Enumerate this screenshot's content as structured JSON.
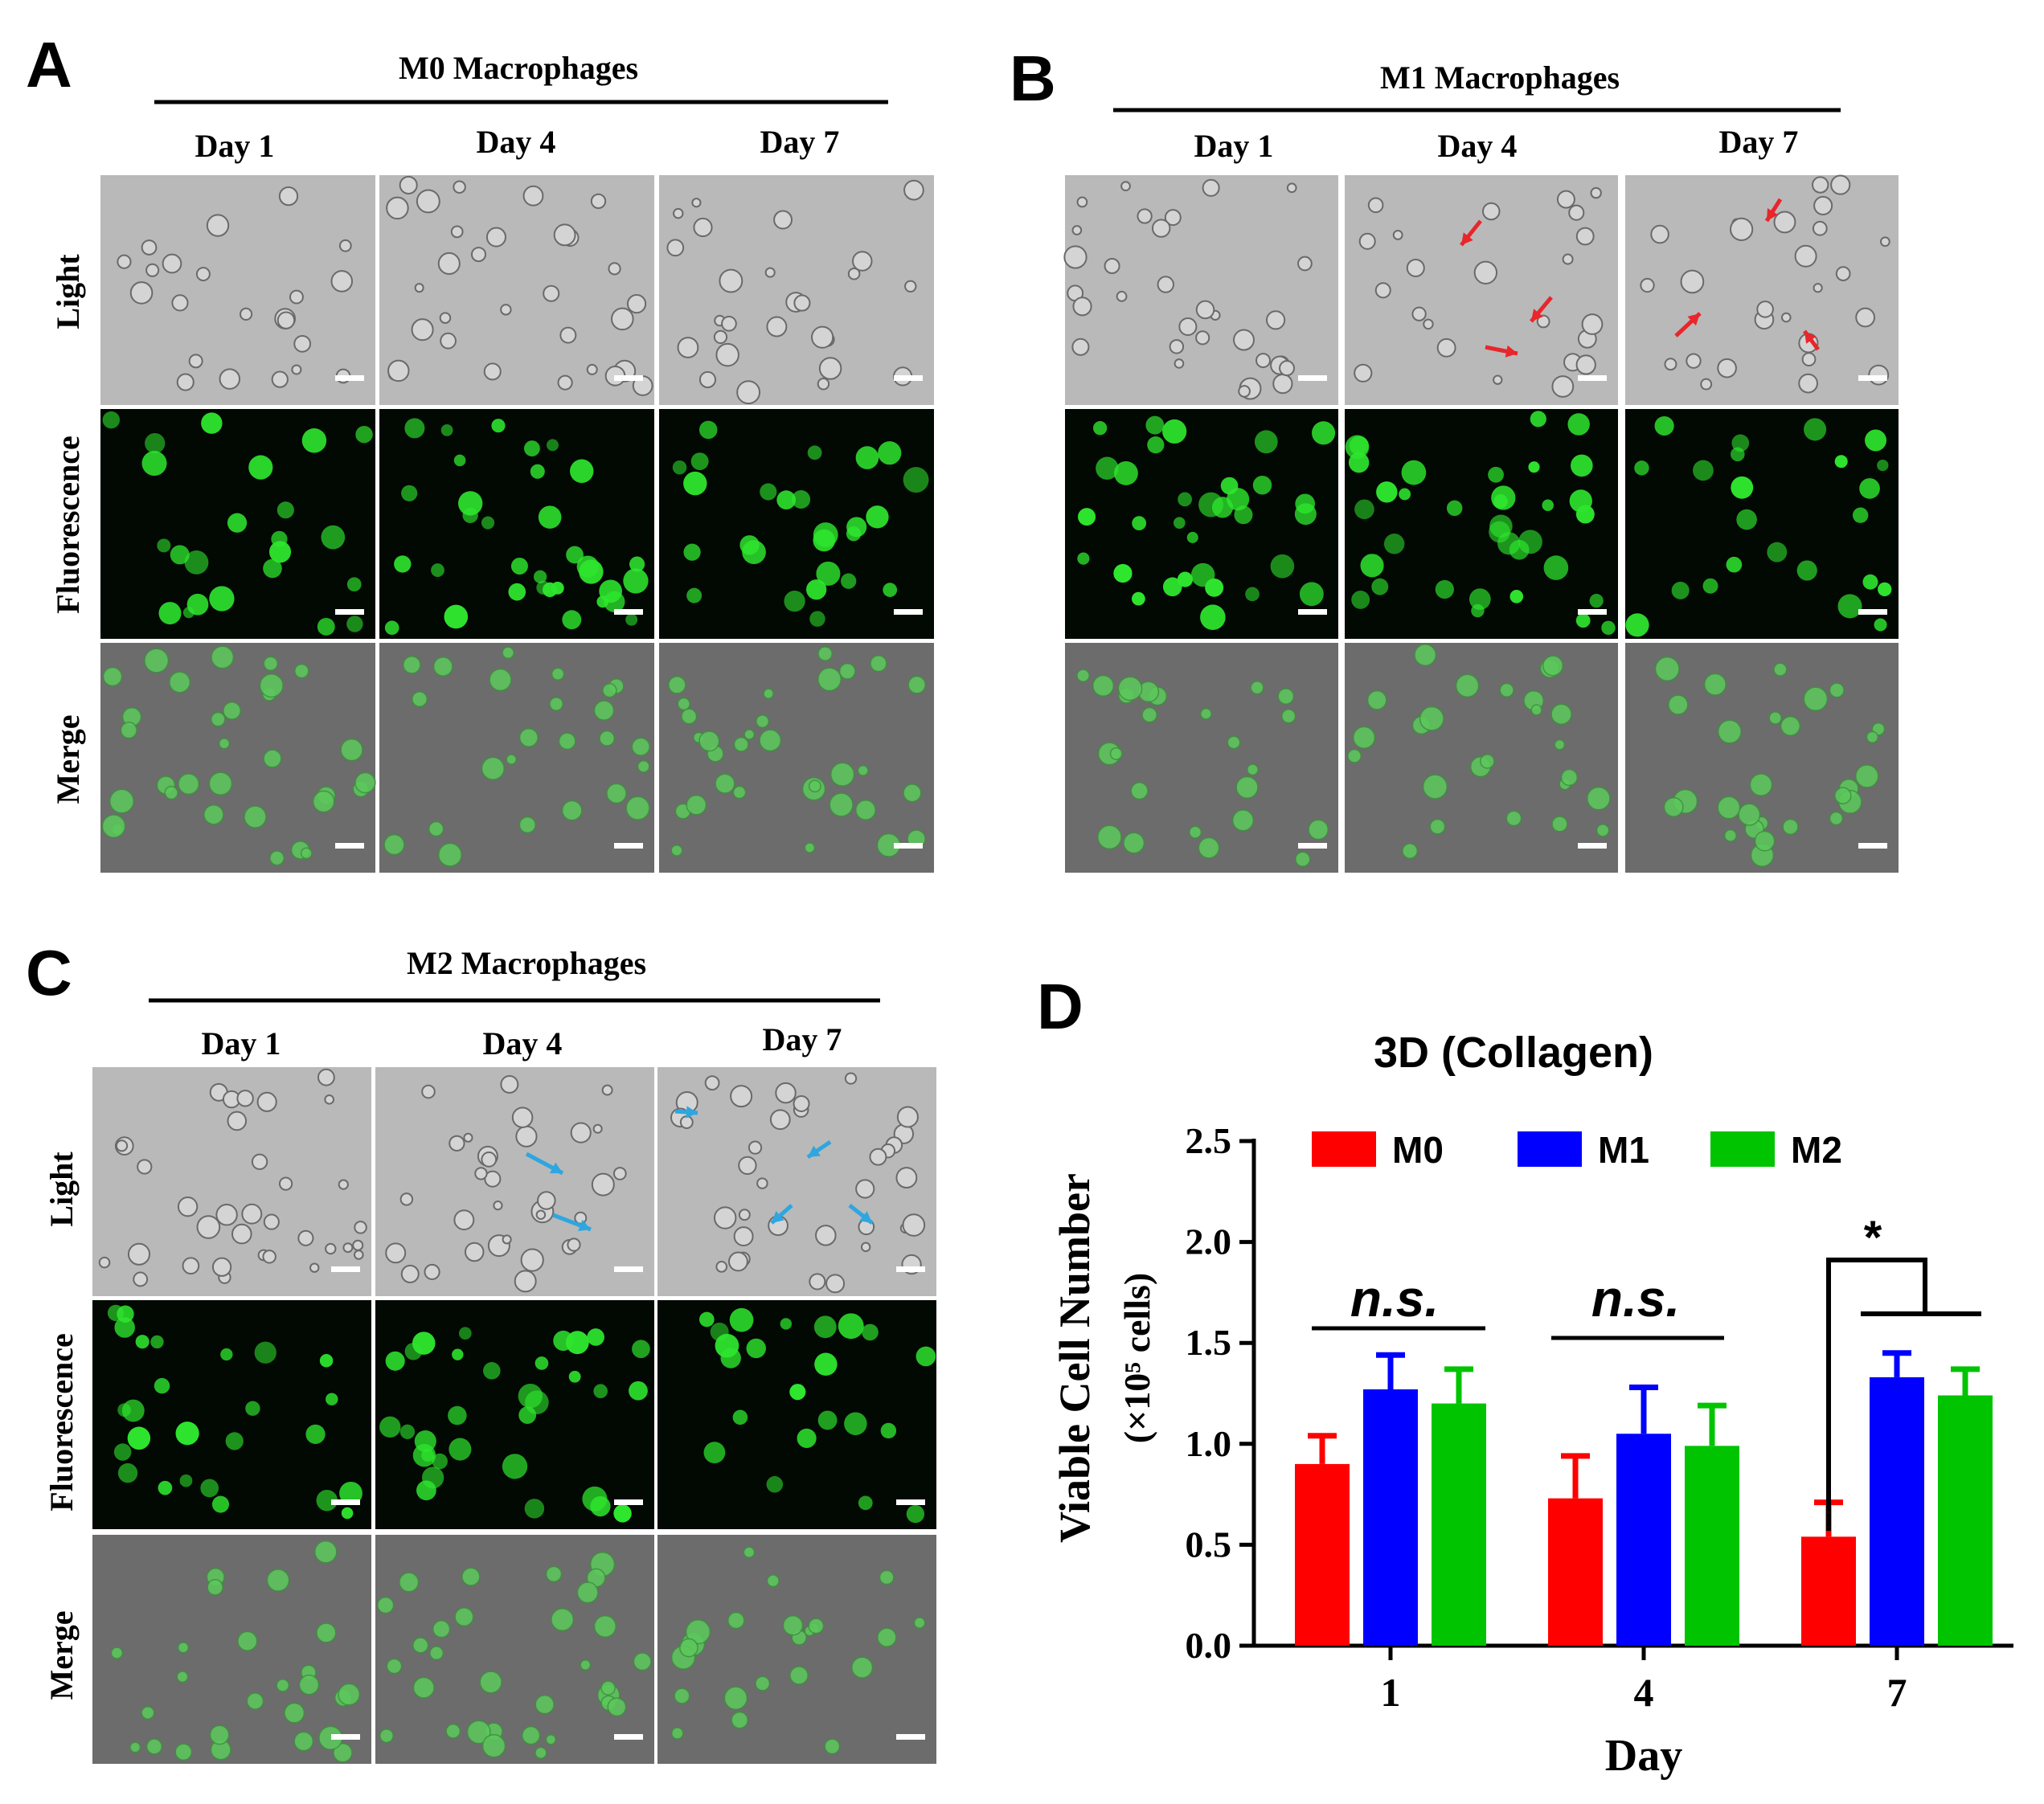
{
  "panels": [
    {
      "letter": "A",
      "title": "M0 Macrophages",
      "days": [
        "Day 1",
        "Day 4",
        "Day 7"
      ],
      "rows": [
        "Light",
        "Fluorescence",
        "Merge"
      ],
      "arrow_color": null
    },
    {
      "letter": "B",
      "title": "M1 Macrophages",
      "days": [
        "Day 1",
        "Day 4",
        "Day 7"
      ],
      "rows": [
        "Light",
        "Fluorescence",
        "Merge"
      ],
      "arrow_color": "#e8262b"
    },
    {
      "letter": "C",
      "title": "M2 Macrophages",
      "days": [
        "Day 1",
        "Day 4",
        "Day 7"
      ],
      "rows": [
        "Light",
        "Fluorescence",
        "Merge"
      ],
      "arrow_color": "#2ea6e0"
    }
  ],
  "colors": {
    "light_bg": "#b9b9b9",
    "fluor_bg": "#020802",
    "fluor_cell": "#2ee62e",
    "merge_bg": "#6c6c6c",
    "merge_cell": "#5cc95c",
    "scale_bar": "#ffffff"
  },
  "chart_data": {
    "letter": "D",
    "type": "bar",
    "title": "3D (Collagen)",
    "xlabel": "Day",
    "ylabel": "Viable Cell Number",
    "ylabel_unit": "(×10⁵ cells)",
    "categories": [
      "1",
      "4",
      "7"
    ],
    "ylim": [
      0,
      2.5
    ],
    "yticks": [
      "0.0",
      "0.5",
      "1.0",
      "1.5",
      "2.0",
      "2.5"
    ],
    "legend_position": "top",
    "series": [
      {
        "name": "M0",
        "color": "#ff0000",
        "values": [
          0.9,
          0.73,
          0.54
        ],
        "errors": [
          0.14,
          0.21,
          0.17
        ]
      },
      {
        "name": "M1",
        "color": "#0000ff",
        "values": [
          1.27,
          1.05,
          1.33
        ],
        "errors": [
          0.17,
          0.23,
          0.12
        ]
      },
      {
        "name": "M2",
        "color": "#00c400",
        "values": [
          1.2,
          0.99,
          1.24
        ],
        "errors": [
          0.17,
          0.2,
          0.13
        ]
      }
    ],
    "annotations": [
      "n.s.",
      "n.s.",
      "*"
    ]
  }
}
